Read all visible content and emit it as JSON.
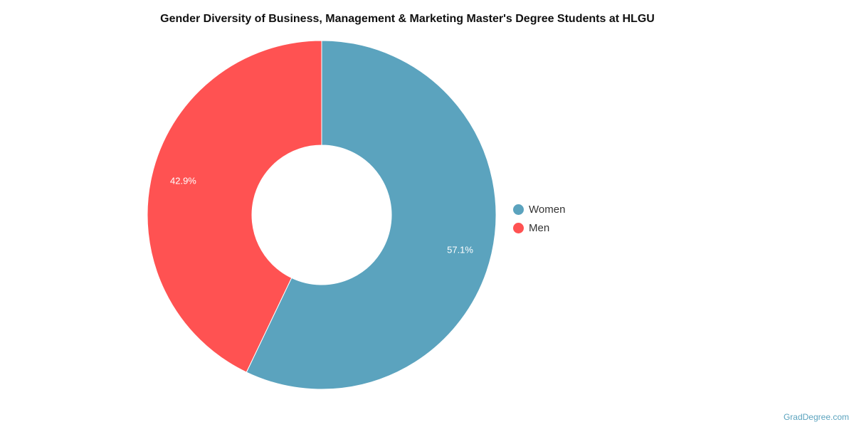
{
  "chart_data": {
    "type": "pie",
    "donut": true,
    "title": "Gender Diversity of Business, Management & Marketing Master's Degree Students at HLGU",
    "categories": [
      "Women",
      "Men"
    ],
    "values": [
      57.1,
      42.9
    ],
    "labels": [
      "57.1%",
      "42.9%"
    ],
    "colors": [
      "#5ba3be",
      "#ff5252"
    ],
    "legend_position": "right"
  },
  "credit": "GradDegree.com"
}
